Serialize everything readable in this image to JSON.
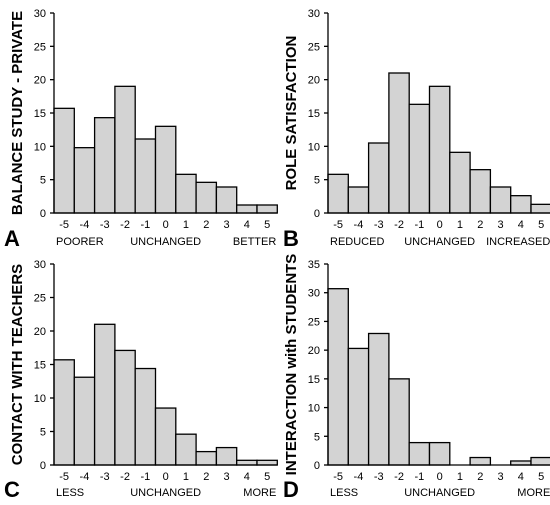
{
  "chart_data": [
    {
      "type": "bar",
      "panel_label": "A",
      "ylabel": "BALANCE STUDY - PRIVATE",
      "categories": [
        "-5",
        "-4",
        "-3",
        "-2",
        "-1",
        "0",
        "1",
        "2",
        "3",
        "4",
        "5"
      ],
      "values": [
        15.7,
        9.8,
        14.3,
        19.0,
        11.1,
        13.0,
        5.8,
        4.6,
        3.9,
        1.2,
        1.2
      ],
      "ylim": [
        0,
        30
      ],
      "yticks": [
        "0",
        "5",
        "10",
        "15",
        "20",
        "25",
        "30"
      ],
      "bottom_labels": {
        "left": "POORER",
        "center": "UNCHANGED",
        "right": "BETTER"
      }
    },
    {
      "type": "bar",
      "panel_label": "B",
      "ylabel": "ROLE SATISFACTION",
      "categories": [
        "-5",
        "-4",
        "-3",
        "-2",
        "-1",
        "0",
        "1",
        "2",
        "3",
        "4",
        "5"
      ],
      "values": [
        5.8,
        3.9,
        10.5,
        21.0,
        16.3,
        19.0,
        9.1,
        6.5,
        3.9,
        2.6,
        1.3
      ],
      "ylim": [
        0,
        30
      ],
      "yticks": [
        "0",
        "5",
        "10",
        "15",
        "20",
        "25",
        "30"
      ],
      "bottom_labels": {
        "left": "REDUCED",
        "center": "UNCHANGED",
        "right": "INCREASED"
      }
    },
    {
      "type": "bar",
      "panel_label": "C",
      "ylabel": "CONTACT WITH TEACHERS",
      "categories": [
        "-5",
        "-4",
        "-3",
        "-2",
        "-1",
        "0",
        "1",
        "2",
        "3",
        "4",
        "5"
      ],
      "values": [
        15.7,
        13.1,
        21.0,
        17.1,
        14.4,
        8.5,
        4.6,
        2.0,
        2.6,
        0.7,
        0.7
      ],
      "ylim": [
        0,
        30
      ],
      "yticks": [
        "0",
        "5",
        "10",
        "15",
        "20",
        "25",
        "30"
      ],
      "bottom_labels": {
        "left": "LESS",
        "center": "UNCHANGED",
        "right": "MORE"
      }
    },
    {
      "type": "bar",
      "panel_label": "D",
      "ylabel": "INTERACTION with STUDENTS",
      "categories": [
        "-5",
        "-4",
        "-3",
        "-2",
        "-1",
        "0",
        "1",
        "2",
        "3",
        "4",
        "5"
      ],
      "values": [
        30.7,
        20.3,
        22.9,
        15.0,
        3.9,
        3.9,
        0,
        1.3,
        0,
        0.7,
        1.3
      ],
      "ylim": [
        0,
        35
      ],
      "yticks": [
        "0",
        "5",
        "10",
        "15",
        "20",
        "25",
        "30",
        "35"
      ],
      "bottom_labels": {
        "left": "LESS",
        "center": "UNCHANGED",
        "right": "MORE"
      }
    }
  ]
}
